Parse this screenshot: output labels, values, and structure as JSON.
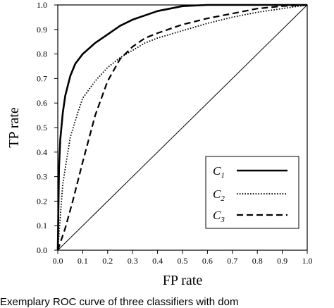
{
  "chart_data": {
    "type": "line",
    "title": "",
    "xlabel": "FP rate",
    "ylabel": "TP rate",
    "xlim": [
      0,
      1
    ],
    "ylim": [
      0,
      1
    ],
    "xticks": [
      "0.0",
      "0.1",
      "0.2",
      "0.3",
      "0.4",
      "0.5",
      "0.6",
      "0.7",
      "0.8",
      "0.9",
      "1.0"
    ],
    "yticks": [
      "0.0",
      "0.1",
      "0.2",
      "0.3",
      "0.4",
      "0.5",
      "0.6",
      "0.7",
      "0.8",
      "0.9",
      "1.0"
    ],
    "grid": false,
    "legend_position": "bottom-right",
    "series": [
      {
        "name": "C1",
        "style": "solid",
        "x": [
          0,
          0.005,
          0.01,
          0.02,
          0.03,
          0.05,
          0.07,
          0.1,
          0.15,
          0.2,
          0.25,
          0.3,
          0.4,
          0.5,
          0.6,
          0.7,
          0.8,
          0.9,
          1.0
        ],
        "y": [
          0,
          0.34,
          0.45,
          0.56,
          0.63,
          0.71,
          0.76,
          0.8,
          0.845,
          0.88,
          0.915,
          0.94,
          0.975,
          0.995,
          1.0,
          1.0,
          1.0,
          1.0,
          1.0
        ]
      },
      {
        "name": "C2",
        "style": "dotted",
        "x": [
          0,
          0.02,
          0.05,
          0.08,
          0.1,
          0.15,
          0.2,
          0.25,
          0.3,
          0.35,
          0.4,
          0.5,
          0.6,
          0.7,
          0.8,
          0.9,
          1.0
        ],
        "y": [
          0,
          0.27,
          0.46,
          0.56,
          0.62,
          0.69,
          0.745,
          0.785,
          0.815,
          0.845,
          0.865,
          0.895,
          0.925,
          0.95,
          0.97,
          0.985,
          1.0
        ]
      },
      {
        "name": "C3",
        "style": "dashed",
        "x": [
          0,
          0.03,
          0.06,
          0.1,
          0.15,
          0.2,
          0.25,
          0.3,
          0.35,
          0.4,
          0.5,
          0.6,
          0.7,
          0.8,
          0.9,
          1.0
        ],
        "y": [
          0,
          0.09,
          0.2,
          0.36,
          0.55,
          0.69,
          0.78,
          0.83,
          0.865,
          0.885,
          0.92,
          0.945,
          0.965,
          0.985,
          0.995,
          1.0
        ]
      },
      {
        "name": "",
        "style": "thin-solid",
        "x": [
          0,
          1
        ],
        "y": [
          0,
          1
        ]
      }
    ],
    "legend": [
      {
        "label": "C",
        "sub": "1",
        "style": "solid"
      },
      {
        "label": "C",
        "sub": "2",
        "style": "dotted"
      },
      {
        "label": "C",
        "sub": "3",
        "style": "dashed"
      }
    ]
  },
  "caption": "Exemplary ROC curve of three classifiers with dom"
}
